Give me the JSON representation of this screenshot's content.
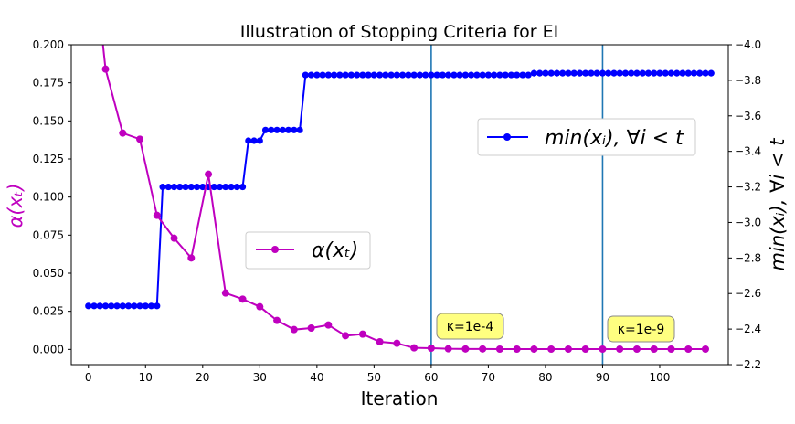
{
  "chart_data": {
    "type": "line",
    "title": "Illustration of Stopping Criteria for EI",
    "xlabel": "Iteration",
    "ylabel_left": "α(xₜ)",
    "ylabel_right": "min(xᵢ), ∀i < t",
    "xlim": [
      -3,
      112
    ],
    "ylim_left": [
      -0.01,
      0.2
    ],
    "ylim_right": [
      -2.2,
      -4.0
    ],
    "right_axis_inverted": true,
    "x_ticks": [
      "0",
      "10",
      "20",
      "30",
      "40",
      "50",
      "60",
      "70",
      "80",
      "90",
      "100"
    ],
    "y_ticks_left": [
      "0.000",
      "0.025",
      "0.050",
      "0.075",
      "0.100",
      "0.125",
      "0.150",
      "0.175",
      "0.200"
    ],
    "y_ticks_right": [
      "−2.2",
      "−2.4",
      "−2.6",
      "−2.8",
      "−3.0",
      "−3.2",
      "−3.4",
      "−3.6",
      "−3.8",
      "−4.0"
    ],
    "colors": {
      "acquisition": "#bf00bf",
      "minimum": "#0000ff",
      "stop_lines": "#1f77b4",
      "annotation_fill": "#ffff80"
    },
    "series": [
      {
        "name": "α(xₜ)",
        "axis": "left",
        "x": [
          0,
          3,
          6,
          9,
          12,
          15,
          18,
          21,
          24,
          27,
          30,
          33,
          36,
          39,
          42,
          45,
          48,
          51,
          54,
          57,
          60,
          63,
          66,
          69,
          72,
          75,
          78,
          81,
          84,
          87,
          90,
          93,
          96,
          99,
          102,
          105,
          108
        ],
        "values": [
          0.29,
          0.184,
          0.142,
          0.138,
          0.088,
          0.073,
          0.06,
          0.115,
          0.037,
          0.033,
          0.028,
          0.019,
          0.013,
          0.014,
          0.016,
          0.009,
          0.01,
          0.005,
          0.004,
          0.001,
          0.0008,
          0.0004,
          0.0003,
          0.0003,
          0.0002,
          0.0002,
          0.0002,
          0.0002,
          0.0002,
          0.0002,
          0.0002,
          0.0002,
          0.0002,
          0.0002,
          0.0002,
          0.0002,
          0.0002
        ]
      },
      {
        "name": "min(xᵢ), ∀i < t",
        "axis": "right",
        "x_start": 0,
        "x_step": 1,
        "segments": [
          {
            "count": 13,
            "value": -2.53
          },
          {
            "count": 15,
            "value": -3.2
          },
          {
            "count": 3,
            "value": -3.46
          },
          {
            "count": 7,
            "value": -3.52
          },
          {
            "count": 40,
            "value": -3.83
          },
          {
            "count": 32,
            "value": -3.84
          }
        ]
      }
    ],
    "vlines": [
      60,
      90
    ],
    "annotations": [
      {
        "text": "κ=1e-4",
        "x": 60
      },
      {
        "text": "κ=1e-9",
        "x": 90
      }
    ]
  }
}
